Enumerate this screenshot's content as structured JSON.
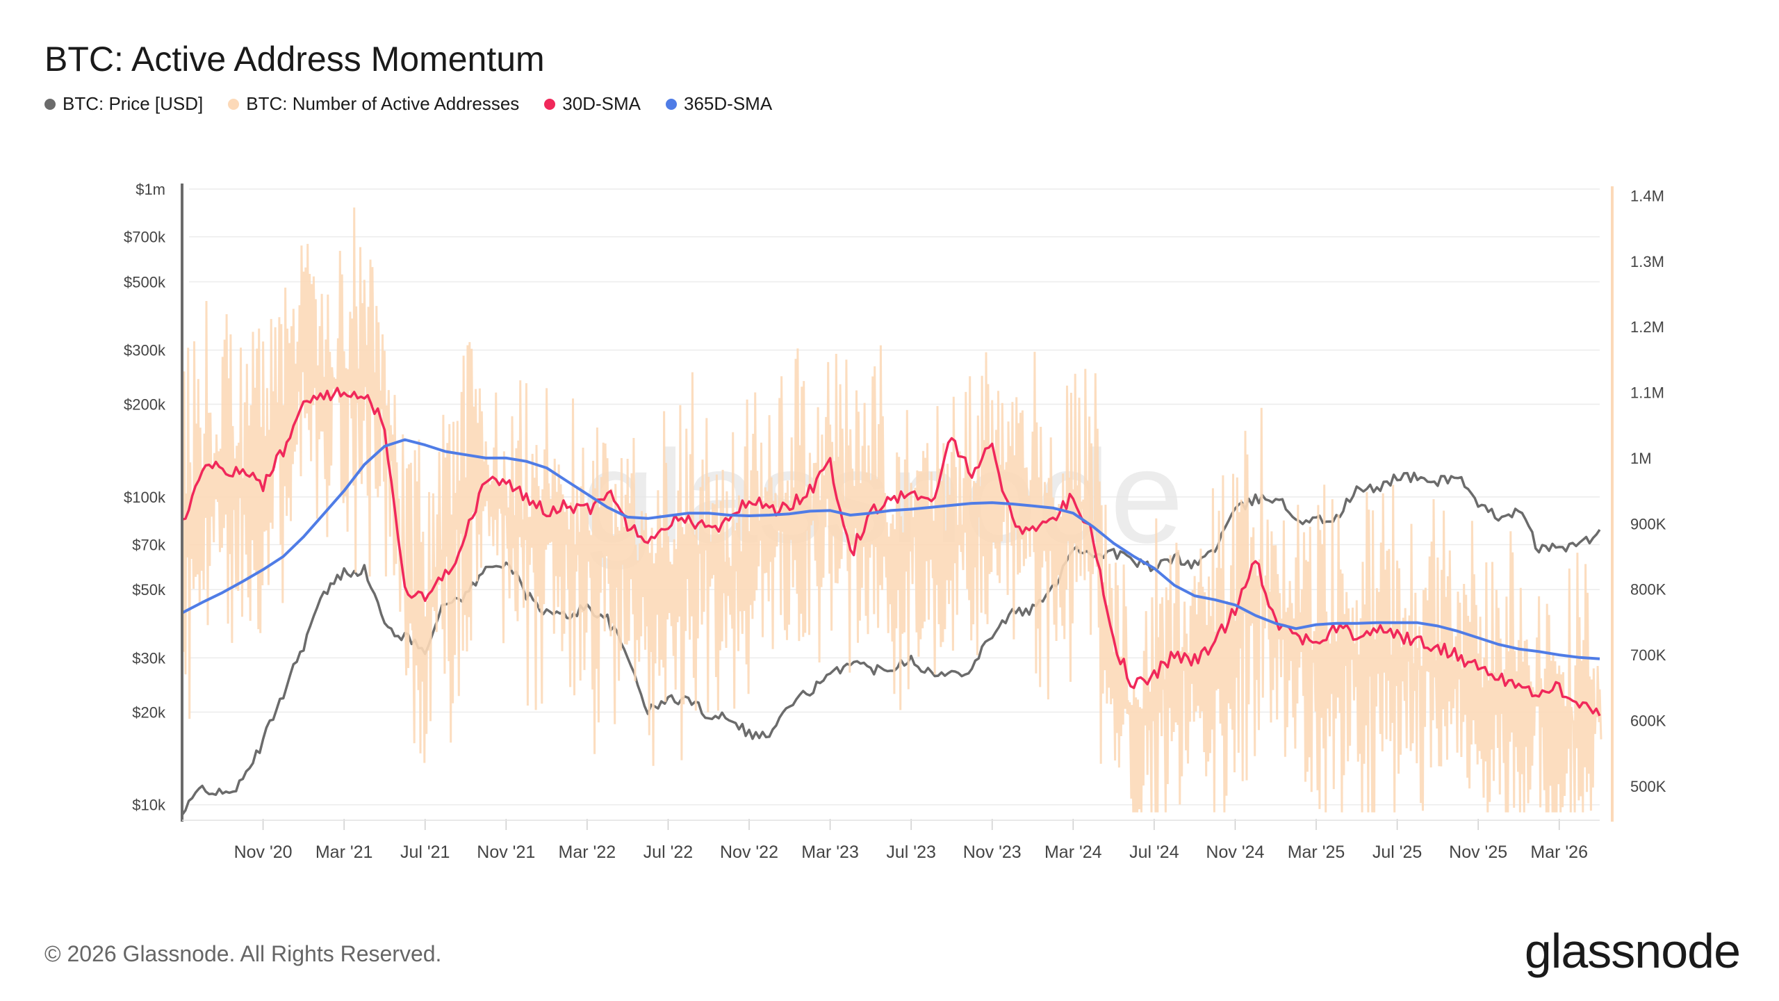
{
  "header": {
    "title": "BTC: Active Address Momentum"
  },
  "legend": [
    {
      "label": "BTC: Price [USD]",
      "color": "#6b6b6b"
    },
    {
      "label": "BTC: Number of Active Addresses",
      "color": "#fcd9b8"
    },
    {
      "label": "30D-SMA",
      "color": "#f0285a"
    },
    {
      "label": "365D-SMA",
      "color": "#4f7ce6"
    }
  ],
  "watermark": "glassnode",
  "footer": {
    "copyright": "© 2026 Glassnode. All Rights Reserved.",
    "brand": "glassnode"
  },
  "chart_data": {
    "type": "line",
    "title": "BTC: Active Address Momentum",
    "x_axis": {
      "type": "date",
      "ticks": [
        "Nov '20",
        "Mar '21",
        "Jul '21",
        "Nov '21",
        "Mar '22",
        "Jul '22",
        "Nov '22",
        "Mar '23",
        "Jul '23",
        "Nov '23",
        "Mar '24",
        "Jul '24",
        "Nov '24",
        "Mar '25",
        "Jul '25",
        "Nov '25",
        "Mar '26"
      ],
      "range": [
        "2020-07",
        "2026-05"
      ]
    },
    "y_left": {
      "scale": "log",
      "range": [
        9000,
        1000000
      ],
      "ticks": [
        {
          "value": 1000000,
          "label": "$1m"
        },
        {
          "value": 700000,
          "label": "$700k"
        },
        {
          "value": 500000,
          "label": "$500k"
        },
        {
          "value": 300000,
          "label": "$300k"
        },
        {
          "value": 200000,
          "label": "$200k"
        },
        {
          "value": 100000,
          "label": "$100k"
        },
        {
          "value": 70000,
          "label": "$70k"
        },
        {
          "value": 50000,
          "label": "$50k"
        },
        {
          "value": 30000,
          "label": "$30k"
        },
        {
          "value": 20000,
          "label": "$20k"
        },
        {
          "value": 10000,
          "label": "$10k"
        }
      ]
    },
    "y_right": {
      "scale": "linear",
      "range": [
        450000,
        1410000
      ],
      "ticks": [
        {
          "value": 1400000,
          "label": "1.4M"
        },
        {
          "value": 1300000,
          "label": "1.3M"
        },
        {
          "value": 1200000,
          "label": "1.2M"
        },
        {
          "value": 1100000,
          "label": "1.1M"
        },
        {
          "value": 1000000,
          "label": "1M"
        },
        {
          "value": 900000,
          "label": "900K"
        },
        {
          "value": 800000,
          "label": "800K"
        },
        {
          "value": 700000,
          "label": "700K"
        },
        {
          "value": 600000,
          "label": "600K"
        },
        {
          "value": 500000,
          "label": "500K"
        }
      ]
    },
    "grid": true,
    "legend_position": "top-left",
    "series": [
      {
        "name": "BTC: Price [USD]",
        "axis": "left",
        "color": "#6b6b6b",
        "x": [
          "2020-07",
          "2020-08",
          "2020-09",
          "2020-10",
          "2020-11",
          "2020-12",
          "2021-01",
          "2021-02",
          "2021-03",
          "2021-04",
          "2021-05",
          "2021-06",
          "2021-07",
          "2021-08",
          "2021-09",
          "2021-10",
          "2021-11",
          "2021-12",
          "2022-01",
          "2022-02",
          "2022-03",
          "2022-04",
          "2022-05",
          "2022-06",
          "2022-07",
          "2022-08",
          "2022-09",
          "2022-10",
          "2022-11",
          "2022-12",
          "2023-01",
          "2023-02",
          "2023-03",
          "2023-04",
          "2023-05",
          "2023-06",
          "2023-07",
          "2023-08",
          "2023-09",
          "2023-10",
          "2023-11",
          "2023-12",
          "2024-01",
          "2024-02",
          "2024-03",
          "2024-04",
          "2024-05",
          "2024-06",
          "2024-07",
          "2024-08",
          "2024-09",
          "2024-10",
          "2024-11",
          "2024-12",
          "2025-01",
          "2025-02",
          "2025-03",
          "2025-04",
          "2025-05",
          "2025-06",
          "2025-07",
          "2025-08",
          "2025-09",
          "2025-10",
          "2025-11",
          "2025-12",
          "2026-01",
          "2026-02",
          "2026-03",
          "2026-04",
          "2026-05"
        ],
        "y": [
          9200,
          11500,
          10700,
          11800,
          16000,
          23000,
          33000,
          48000,
          57000,
          58000,
          38000,
          35000,
          32000,
          45000,
          48000,
          58000,
          62000,
          48000,
          42000,
          41000,
          44000,
          40000,
          30000,
          20000,
          22000,
          22000,
          19500,
          19500,
          17000,
          16800,
          21000,
          23500,
          26000,
          29500,
          27500,
          28000,
          30000,
          26500,
          26500,
          28000,
          36000,
          42000,
          43000,
          50000,
          69000,
          65000,
          66000,
          62000,
          58000,
          64000,
          60000,
          68000,
          90000,
          98000,
          100000,
          85000,
          84000,
          85000,
          105000,
          106000,
          117000,
          115000,
          112000,
          118000,
          92000,
          87000,
          90000,
          67000,
          69000,
          70000,
          76000
        ]
      },
      {
        "name": "BTC: Number of Active Addresses",
        "axis": "right",
        "color": "#fcd9b8",
        "x": [
          "2020-07",
          "2020-08",
          "2020-09",
          "2020-10",
          "2020-11",
          "2020-12",
          "2021-01",
          "2021-02",
          "2021-03",
          "2021-04",
          "2021-05",
          "2021-06",
          "2021-07",
          "2021-08",
          "2021-09",
          "2021-10",
          "2021-11",
          "2021-12",
          "2022-01",
          "2022-02",
          "2022-03",
          "2022-04",
          "2022-05",
          "2022-06",
          "2022-07",
          "2022-08",
          "2022-09",
          "2022-10",
          "2022-11",
          "2022-12",
          "2023-01",
          "2023-02",
          "2023-03",
          "2023-04",
          "2023-05",
          "2023-06",
          "2023-07",
          "2023-08",
          "2023-09",
          "2023-10",
          "2023-11",
          "2023-12",
          "2024-01",
          "2024-02",
          "2024-03",
          "2024-04",
          "2024-05",
          "2024-06",
          "2024-07",
          "2024-08",
          "2024-09",
          "2024-10",
          "2024-11",
          "2024-12",
          "2025-01",
          "2025-02",
          "2025-03",
          "2025-04",
          "2025-05",
          "2025-06",
          "2025-07",
          "2025-08",
          "2025-09",
          "2025-10",
          "2025-11",
          "2025-12",
          "2026-01",
          "2026-02",
          "2026-03",
          "2026-04",
          "2026-05"
        ],
        "y": [
          880000,
          960000,
          990000,
          960000,
          1000000,
          1060000,
          1140000,
          1120000,
          1110000,
          1140000,
          1080000,
          800000,
          740000,
          860000,
          930000,
          960000,
          920000,
          880000,
          880000,
          880000,
          850000,
          880000,
          830000,
          800000,
          820000,
          860000,
          860000,
          830000,
          870000,
          900000,
          900000,
          900000,
          960000,
          880000,
          960000,
          850000,
          880000,
          890000,
          860000,
          910000,
          950000,
          950000,
          900000,
          870000,
          940000,
          900000,
          650000,
          600000,
          640000,
          680000,
          700000,
          680000,
          730000,
          820000,
          750000,
          720000,
          700000,
          680000,
          700000,
          700000,
          700000,
          680000,
          670000,
          680000,
          650000,
          640000,
          620000,
          640000,
          600000,
          600000,
          610000
        ]
      },
      {
        "name": "30D-SMA",
        "axis": "right",
        "color": "#f0285a",
        "x": [
          "2020-07",
          "2020-08",
          "2020-09",
          "2020-10",
          "2020-11",
          "2020-12",
          "2021-01",
          "2021-02",
          "2021-03",
          "2021-04",
          "2021-05",
          "2021-06",
          "2021-07",
          "2021-08",
          "2021-09",
          "2021-10",
          "2021-11",
          "2021-12",
          "2022-01",
          "2022-02",
          "2022-03",
          "2022-04",
          "2022-05",
          "2022-06",
          "2022-07",
          "2022-08",
          "2022-09",
          "2022-10",
          "2022-11",
          "2022-12",
          "2023-01",
          "2023-02",
          "2023-03",
          "2023-04",
          "2023-05",
          "2023-06",
          "2023-07",
          "2023-08",
          "2023-09",
          "2023-10",
          "2023-11",
          "2023-12",
          "2024-01",
          "2024-02",
          "2024-03",
          "2024-04",
          "2024-05",
          "2024-06",
          "2024-07",
          "2024-08",
          "2024-09",
          "2024-10",
          "2024-11",
          "2024-12",
          "2025-01",
          "2025-02",
          "2025-03",
          "2025-04",
          "2025-05",
          "2025-06",
          "2025-07",
          "2025-08",
          "2025-09",
          "2025-10",
          "2025-11",
          "2025-12",
          "2026-01",
          "2026-02",
          "2026-03",
          "2026-04",
          "2026-05"
        ],
        "y": [
          900000,
          990000,
          985000,
          975000,
          960000,
          1010000,
          1080000,
          1100000,
          1095000,
          1100000,
          1050000,
          800000,
          790000,
          820000,
          880000,
          970000,
          960000,
          940000,
          920000,
          930000,
          920000,
          950000,
          900000,
          880000,
          900000,
          910000,
          890000,
          900000,
          940000,
          920000,
          930000,
          950000,
          990000,
          850000,
          920000,
          940000,
          940000,
          930000,
          1030000,
          980000,
          1020000,
          900000,
          890000,
          910000,
          940000,
          880000,
          720000,
          650000,
          670000,
          700000,
          690000,
          720000,
          770000,
          850000,
          750000,
          730000,
          720000,
          740000,
          730000,
          740000,
          730000,
          720000,
          710000,
          700000,
          680000,
          670000,
          650000,
          640000,
          650000,
          630000,
          610000
        ]
      },
      {
        "name": "365D-SMA",
        "axis": "right",
        "color": "#4f7ce6",
        "x": [
          "2020-07",
          "2020-08",
          "2020-09",
          "2020-10",
          "2020-11",
          "2020-12",
          "2021-01",
          "2021-02",
          "2021-03",
          "2021-04",
          "2021-05",
          "2021-06",
          "2021-07",
          "2021-08",
          "2021-09",
          "2021-10",
          "2021-11",
          "2021-12",
          "2022-01",
          "2022-02",
          "2022-03",
          "2022-04",
          "2022-05",
          "2022-06",
          "2022-07",
          "2022-08",
          "2022-09",
          "2022-10",
          "2022-11",
          "2022-12",
          "2023-01",
          "2023-02",
          "2023-03",
          "2023-04",
          "2023-05",
          "2023-06",
          "2023-07",
          "2023-08",
          "2023-09",
          "2023-10",
          "2023-11",
          "2023-12",
          "2024-01",
          "2024-02",
          "2024-03",
          "2024-04",
          "2024-05",
          "2024-06",
          "2024-07",
          "2024-08",
          "2024-09",
          "2024-10",
          "2024-11",
          "2024-12",
          "2025-01",
          "2025-02",
          "2025-03",
          "2025-04",
          "2025-05",
          "2025-06",
          "2025-07",
          "2025-08",
          "2025-09",
          "2025-10",
          "2025-11",
          "2025-12",
          "2026-01",
          "2026-02",
          "2026-03",
          "2026-04",
          "2026-05"
        ],
        "y": [
          764000,
          780000,
          795000,
          812000,
          830000,
          850000,
          880000,
          915000,
          950000,
          990000,
          1018000,
          1028000,
          1020000,
          1010000,
          1005000,
          1000000,
          1000000,
          995000,
          985000,
          965000,
          945000,
          925000,
          910000,
          908000,
          912000,
          916000,
          916000,
          913000,
          912000,
          913000,
          915000,
          919000,
          920000,
          913000,
          916000,
          920000,
          922000,
          925000,
          928000,
          931000,
          932000,
          930000,
          927000,
          924000,
          916000,
          895000,
          870000,
          850000,
          832000,
          806000,
          790000,
          784000,
          776000,
          760000,
          748000,
          740000,
          746000,
          748000,
          748000,
          749000,
          749000,
          749000,
          744000,
          736000,
          726000,
          716000,
          709000,
          705000,
          700000,
          696000,
          694000
        ]
      }
    ]
  }
}
